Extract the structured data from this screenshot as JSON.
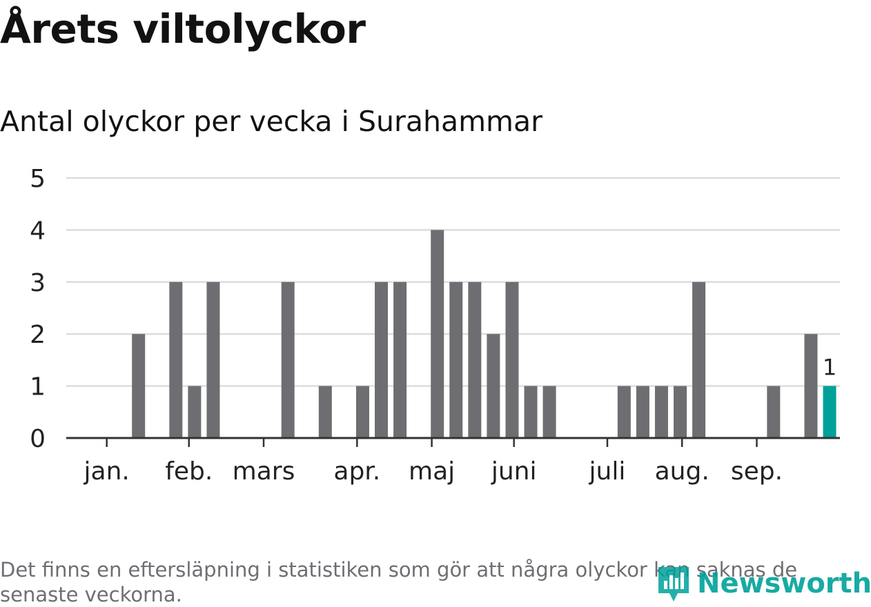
{
  "title": "Årets viltolyckor",
  "subtitle": "Antal olyckor per vecka i Surahammar",
  "footnote": "Det finns en eftersläpning i statistiken som gör att några olyckor kan saknas de senaste veckorna.",
  "brand": {
    "name": "Newsworthy",
    "icon": "newsworthy-logo-icon"
  },
  "colors": {
    "bar": "#6e6d72",
    "highlight": "#00a19a",
    "grid": "#dcdcdc",
    "axis": "#333333",
    "tick_text": "#222222"
  },
  "chart_data": {
    "type": "bar",
    "title": "Antal olyckor per vecka i Surahammar",
    "xlabel": "",
    "ylabel": "",
    "ylim": [
      0,
      5
    ],
    "yticks": [
      0,
      1,
      2,
      3,
      4,
      5
    ],
    "grid": true,
    "x_unit": "week",
    "weeks": [
      1,
      2,
      3,
      4,
      5,
      6,
      7,
      8,
      9,
      10,
      11,
      12,
      13,
      14,
      15,
      16,
      17,
      18,
      19,
      20,
      21,
      22,
      23,
      24,
      25,
      26,
      27,
      28,
      29,
      30,
      31,
      32,
      33,
      34,
      35,
      36,
      37,
      38,
      39,
      40,
      41
    ],
    "values": [
      0,
      0,
      0,
      2,
      0,
      3,
      1,
      3,
      0,
      0,
      0,
      3,
      0,
      1,
      0,
      1,
      3,
      3,
      0,
      4,
      3,
      3,
      2,
      3,
      1,
      1,
      0,
      0,
      0,
      1,
      1,
      1,
      1,
      3,
      0,
      0,
      0,
      1,
      0,
      2,
      1
    ],
    "highlight_week": 41,
    "highlight_label": "1",
    "month_ticks": [
      {
        "label": "jan.",
        "week": 2.3
      },
      {
        "label": "feb.",
        "week": 6.7
      },
      {
        "label": "mars",
        "week": 10.7
      },
      {
        "label": "apr.",
        "week": 15.7
      },
      {
        "label": "maj",
        "week": 19.7
      },
      {
        "label": "juni",
        "week": 24.1
      },
      {
        "label": "juli",
        "week": 29.1
      },
      {
        "label": "aug.",
        "week": 33.1
      },
      {
        "label": "sep.",
        "week": 37.1
      }
    ]
  }
}
